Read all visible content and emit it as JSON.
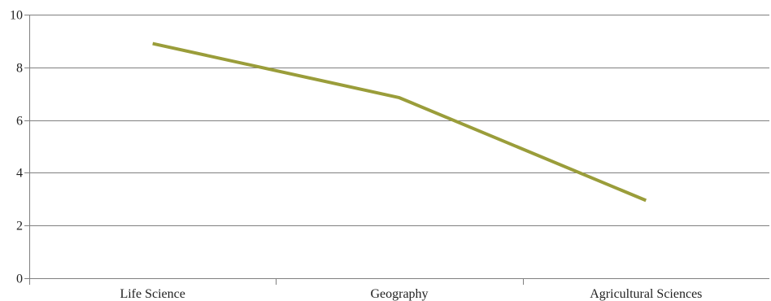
{
  "chart_data": {
    "type": "line",
    "title": "",
    "xlabel": "",
    "ylabel": "",
    "categories": [
      "Life Science",
      "Geography",
      "Agricultural Sciences"
    ],
    "series": [
      {
        "values": [
          8.9,
          6.85,
          2.95
        ],
        "color": "#9a9d3a"
      }
    ],
    "ylim": [
      0,
      10
    ],
    "yticks": [
      0,
      2,
      4,
      6,
      8,
      10
    ],
    "ytick_labels": [
      "0",
      "2",
      "4",
      "6",
      "8",
      "10"
    ],
    "grid": true,
    "legend": "none"
  }
}
